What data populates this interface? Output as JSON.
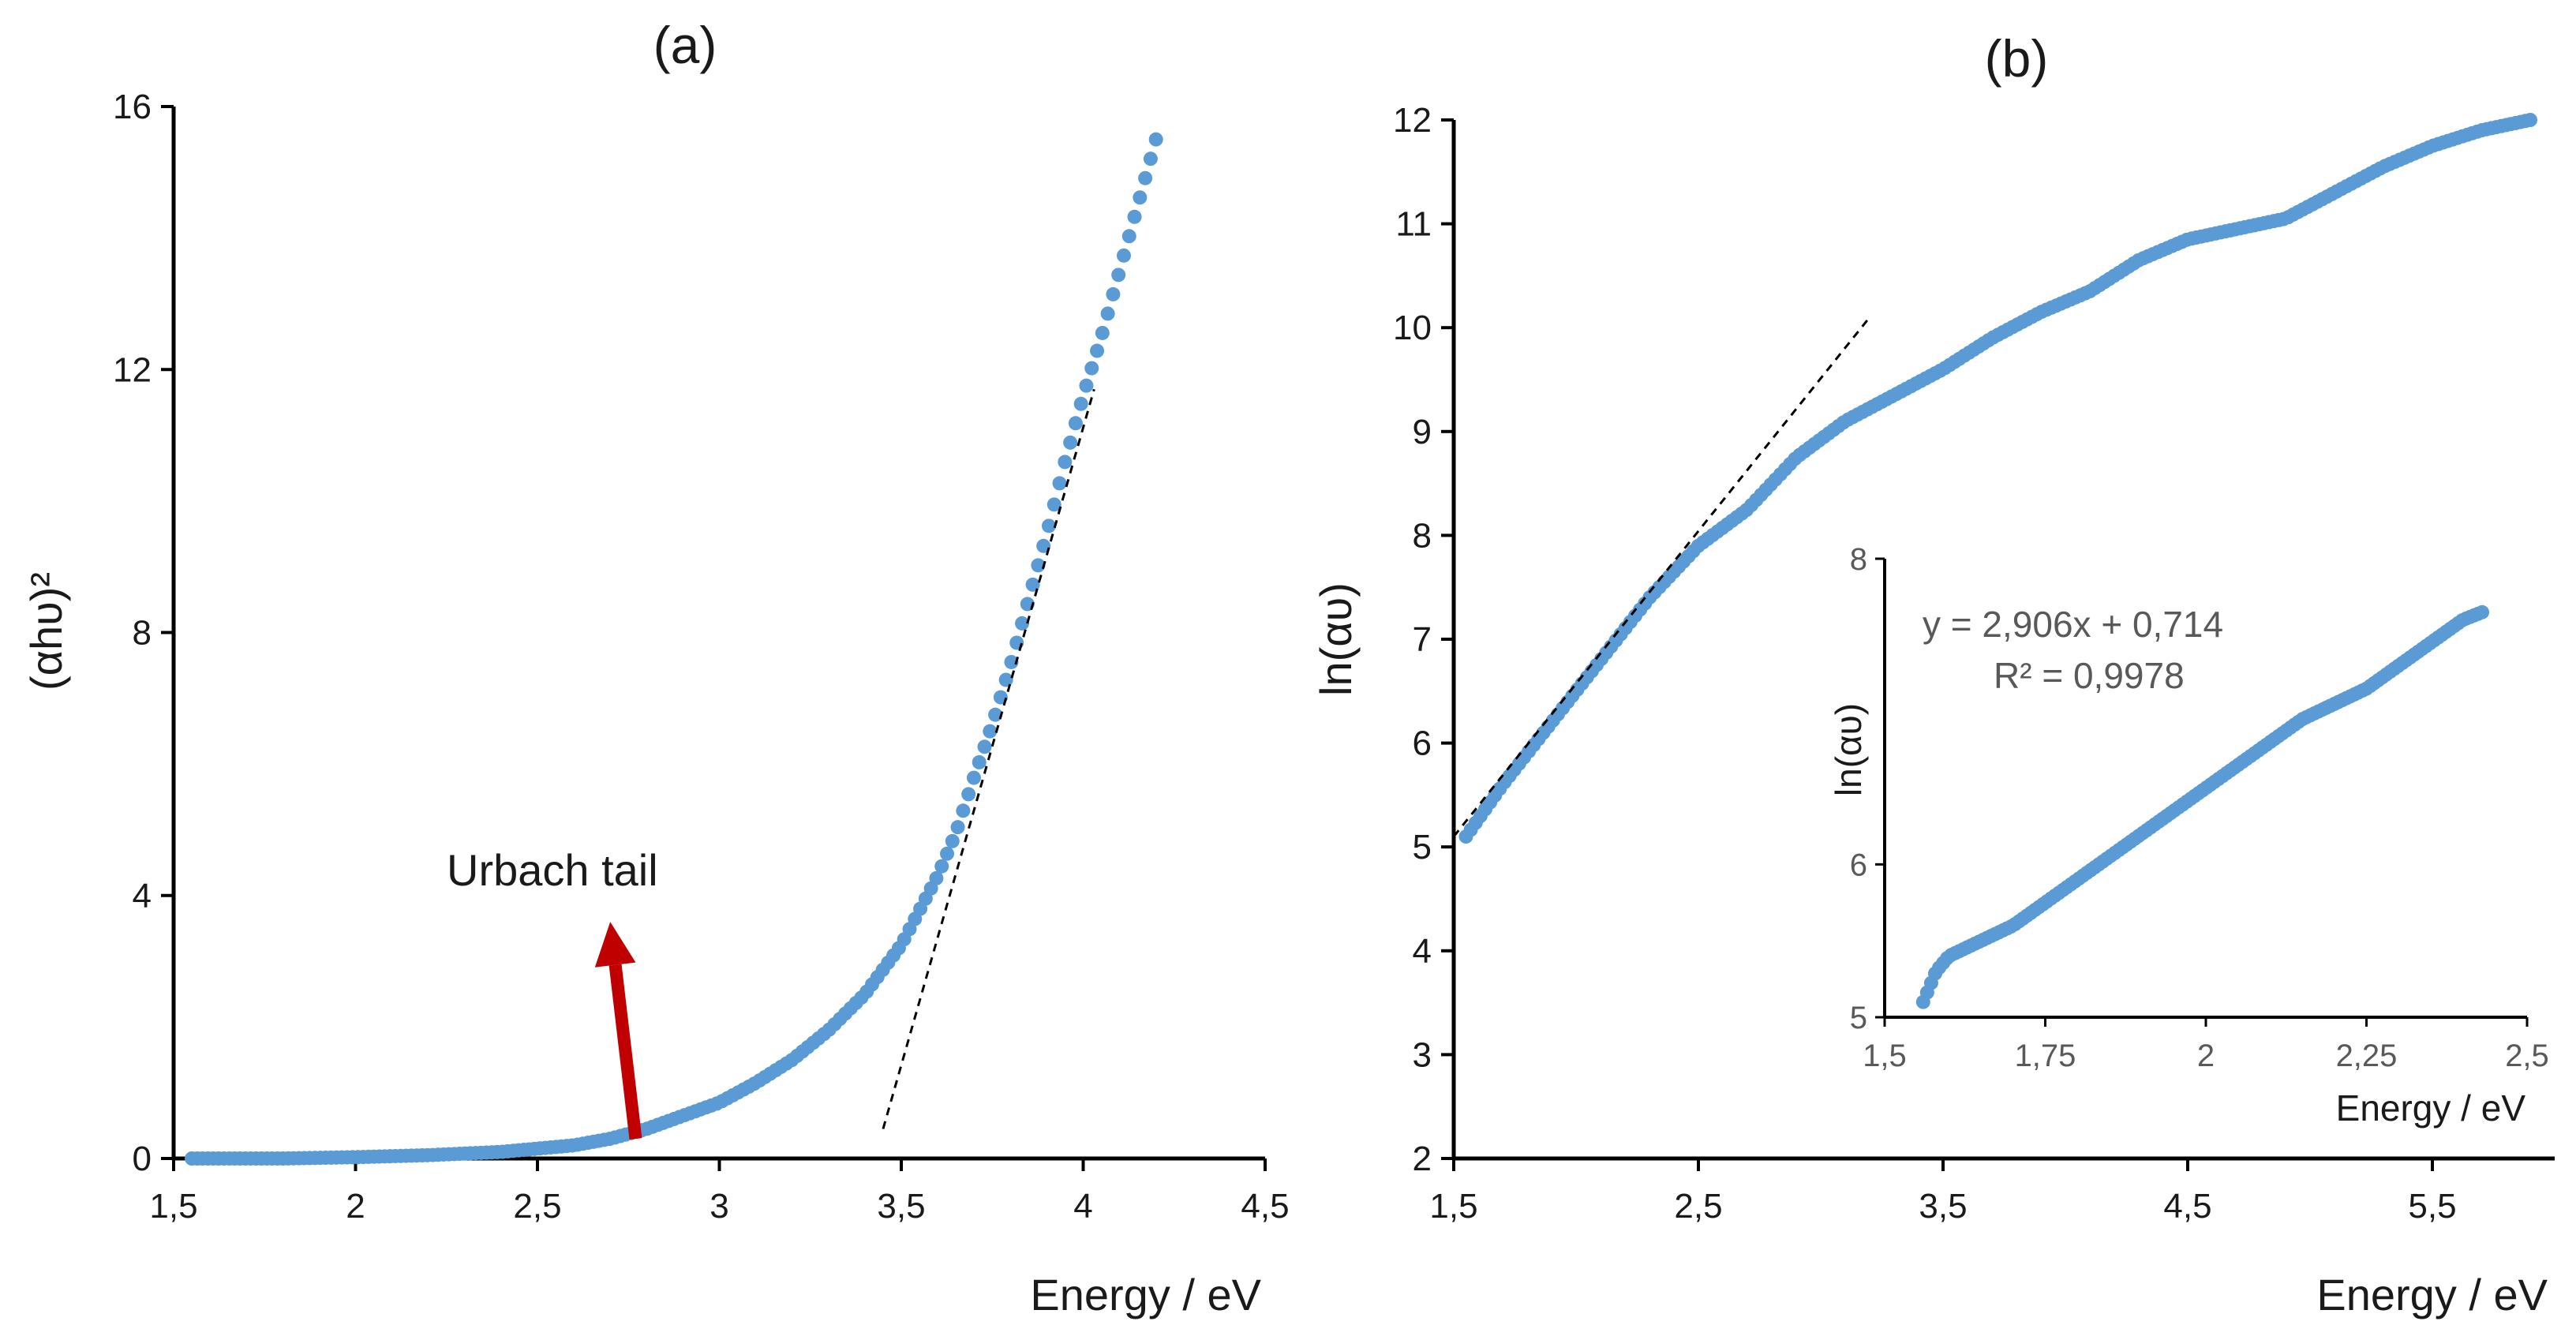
{
  "figure": {
    "colors": {
      "series": "#5b9bd5",
      "axis": "#000000",
      "arrow": "#c00000",
      "fit_line": "#000000",
      "inset_text": "#595959"
    }
  },
  "chart_data": [
    {
      "panel": "(a)",
      "type": "scatter",
      "title": "(a)",
      "xlabel": "Energy / eV",
      "ylabel": "(αhυ)²",
      "xlim": [
        1.5,
        4.5
      ],
      "ylim": [
        0,
        16
      ],
      "xticks": [
        1.5,
        2,
        2.5,
        3,
        3.5,
        4,
        4.5
      ],
      "xtick_labels": [
        "1,5",
        "2",
        "2,5",
        "3",
        "3,5",
        "4",
        "4,5"
      ],
      "yticks": [
        0,
        4,
        8,
        12,
        16
      ],
      "ytick_labels": [
        "0",
        "4",
        "8",
        "12",
        "16"
      ],
      "series": [
        {
          "name": "data",
          "x": [
            1.55,
            1.8,
            2.0,
            2.2,
            2.4,
            2.6,
            2.7,
            2.8,
            2.9,
            3.0,
            3.1,
            3.2,
            3.3,
            3.4,
            3.5,
            3.6,
            3.65,
            3.7,
            3.75,
            3.8,
            3.85,
            3.9,
            3.95,
            4.0,
            4.05,
            4.1,
            4.15,
            4.2
          ],
          "y": [
            0.0,
            0.0,
            0.02,
            0.05,
            0.1,
            0.2,
            0.3,
            0.45,
            0.65,
            0.85,
            1.15,
            1.5,
            1.95,
            2.5,
            3.25,
            4.3,
            4.95,
            5.8,
            6.6,
            7.5,
            8.5,
            9.5,
            10.6,
            11.6,
            12.5,
            13.5,
            14.5,
            15.5
          ]
        }
      ],
      "fit_line": {
        "x": [
          3.45,
          4.03
        ],
        "y": [
          0.45,
          11.7
        ]
      },
      "annotations": [
        {
          "text": "Urbach tail",
          "arrow_from": [
            2.77,
            0.3
          ],
          "arrow_to": [
            2.7,
            3.6
          ]
        }
      ]
    },
    {
      "panel": "(b)",
      "type": "scatter",
      "title": "(b)",
      "xlabel": "Energy / eV",
      "ylabel": "ln(αυ)",
      "xlim": [
        1.5,
        6.0
      ],
      "ylim": [
        2,
        12
      ],
      "xticks": [
        1.5,
        2.5,
        3.5,
        4.5,
        5.5
      ],
      "xtick_labels": [
        "1,5",
        "2,5",
        "3,5",
        "4,5",
        "5,5"
      ],
      "yticks": [
        2,
        3,
        4,
        5,
        6,
        7,
        8,
        9,
        10,
        11,
        12
      ],
      "ytick_labels": [
        "2",
        "3",
        "4",
        "5",
        "6",
        "7",
        "8",
        "9",
        "10",
        "11",
        "12"
      ],
      "series": [
        {
          "name": "data",
          "x": [
            1.55,
            1.7,
            1.9,
            2.1,
            2.3,
            2.5,
            2.7,
            2.9,
            3.1,
            3.3,
            3.5,
            3.7,
            3.9,
            4.1,
            4.3,
            4.5,
            4.7,
            4.9,
            5.1,
            5.3,
            5.5,
            5.7,
            5.9
          ],
          "y": [
            5.1,
            5.6,
            6.2,
            6.8,
            7.4,
            7.9,
            8.25,
            8.75,
            9.1,
            9.35,
            9.6,
            9.9,
            10.15,
            10.35,
            10.65,
            10.85,
            10.95,
            11.05,
            11.3,
            11.55,
            11.75,
            11.9,
            12.0
          ]
        }
      ],
      "fit_line": {
        "x": [
          1.5,
          3.2
        ],
        "y": [
          5.1,
          10.1
        ]
      }
    },
    {
      "panel": "inset",
      "type": "scatter",
      "xlabel": "Energy / eV",
      "ylabel": "ln(αυ)",
      "xlim": [
        1.5,
        2.5
      ],
      "ylim": [
        5,
        8
      ],
      "xticks": [
        1.5,
        1.75,
        2,
        2.25,
        2.5
      ],
      "xtick_labels": [
        "1,5",
        "1,75",
        "2",
        "2,25",
        "2,5"
      ],
      "yticks": [
        5,
        6,
        8
      ],
      "ytick_labels": [
        "5",
        "6",
        "8"
      ],
      "series": [
        {
          "name": "data",
          "x": [
            1.56,
            1.58,
            1.6,
            1.65,
            1.7,
            1.75,
            1.8,
            1.85,
            1.9,
            1.95,
            2.0,
            2.05,
            2.1,
            2.15,
            2.2,
            2.25,
            2.3,
            2.35,
            2.4,
            2.43
          ],
          "y": [
            5.1,
            5.3,
            5.4,
            5.5,
            5.6,
            5.75,
            5.9,
            6.05,
            6.2,
            6.35,
            6.5,
            6.65,
            6.8,
            6.95,
            7.05,
            7.15,
            7.3,
            7.45,
            7.6,
            7.65
          ]
        }
      ],
      "equation": "y = 2,906x + 0,714",
      "r_squared": "R² = 0,9978"
    }
  ]
}
